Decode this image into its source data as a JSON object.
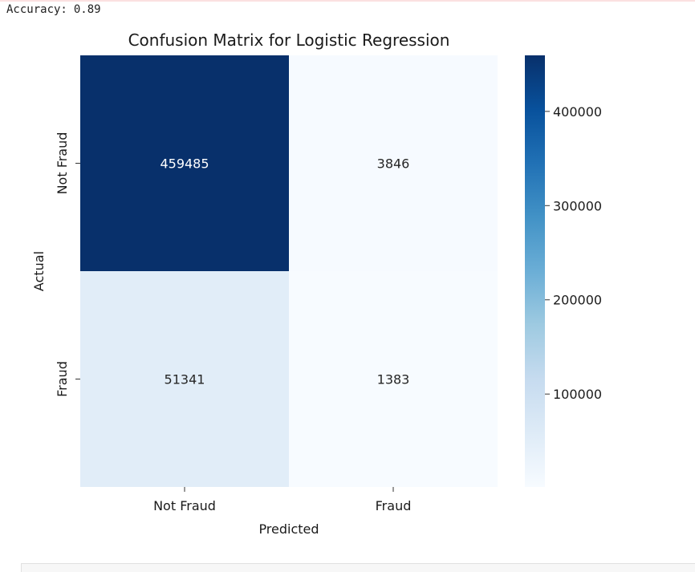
{
  "output": {
    "stdout_label": "Accuracy:",
    "stdout_value": "0.89"
  },
  "chart_data": {
    "type": "heatmap",
    "title": "Confusion Matrix for Logistic Regression",
    "xlabel": "Predicted",
    "ylabel": "Actual",
    "x_categories": [
      "Not Fraud",
      "Fraud"
    ],
    "y_categories": [
      "Not Fraud",
      "Fraud"
    ],
    "values": [
      [
        459485,
        3846
      ],
      [
        51341,
        1383
      ]
    ],
    "colormap": "Blues",
    "annotate": true,
    "colorbar": {
      "ticks": [
        100000,
        200000,
        300000,
        400000
      ],
      "tick_labels": [
        "100000",
        "200000",
        "300000",
        "400000"
      ],
      "range": [
        1383,
        459485
      ]
    }
  }
}
